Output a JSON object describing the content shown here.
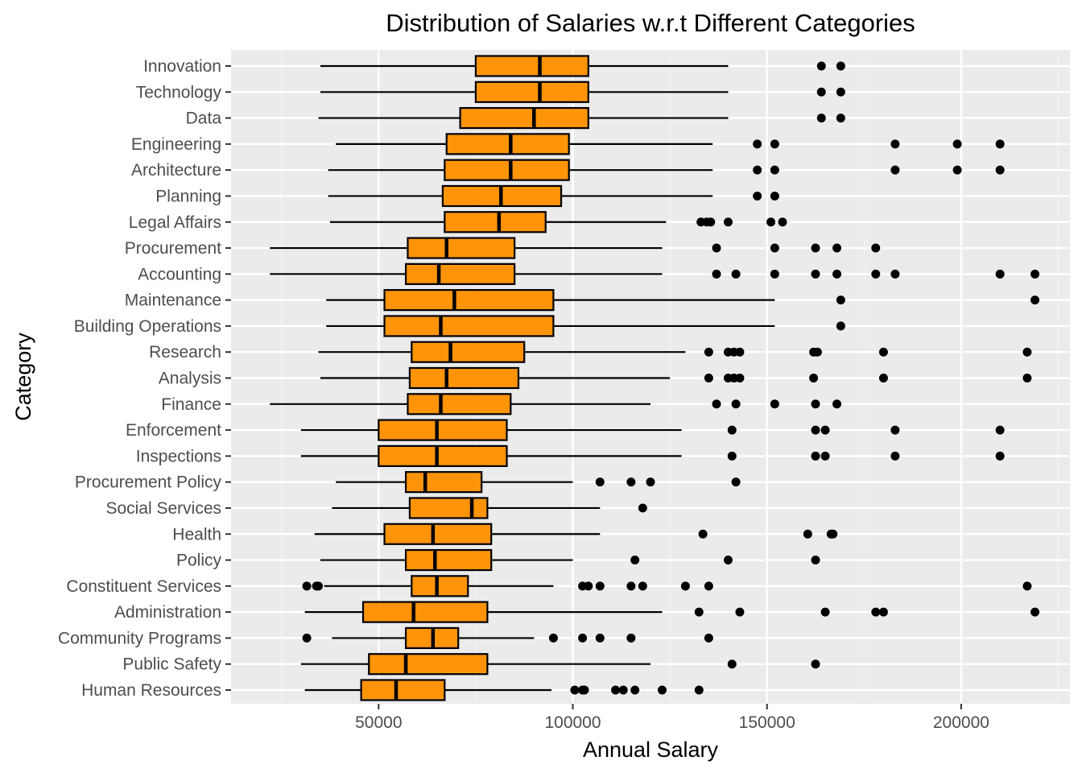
{
  "chart_data": {
    "type": "boxplot",
    "orientation": "horizontal",
    "title": "Distribution of Salaries w.r.t Different Categories",
    "xlabel": "Annual Salary",
    "ylabel": "Category",
    "xlim": [
      12000,
      228000
    ],
    "xticks": [
      50000,
      100000,
      150000,
      200000
    ],
    "xtick_labels": [
      "50000",
      "100000",
      "150000",
      "200000"
    ],
    "grid": true,
    "legend": "none",
    "colors": {
      "box_fill": "#FF9409",
      "box_stroke": "#000000",
      "panel_bg": "#EBEBEB",
      "grid_major": "#FFFFFF",
      "grid_minor": "#F5F5F5",
      "outlier": "#000000"
    },
    "categories": [
      "Innovation",
      "Technology",
      "Data",
      "Engineering",
      "Architecture",
      "Planning",
      "Legal Affairs",
      "Procurement",
      "Accounting",
      "Maintenance",
      "Building Operations",
      "Research",
      "Analysis",
      "Finance",
      "Enforcement",
      "Inspections",
      "Procurement Policy",
      "Social Services",
      "Health",
      "Policy",
      "Constituent Services",
      "Administration",
      "Community Programs",
      "Public Safety",
      "Human Resources"
    ],
    "boxes": [
      {
        "category": "Innovation",
        "whisker_low": 35000,
        "q1": 75000,
        "median": 91500,
        "q3": 104000,
        "whisker_high": 140000,
        "outliers": [
          164000,
          169000
        ]
      },
      {
        "category": "Technology",
        "whisker_low": 35000,
        "q1": 75000,
        "median": 91500,
        "q3": 104000,
        "whisker_high": 140000,
        "outliers": [
          164000,
          169000
        ]
      },
      {
        "category": "Data",
        "whisker_low": 34500,
        "q1": 71000,
        "median": 90000,
        "q3": 104000,
        "whisker_high": 140000,
        "outliers": [
          164000,
          169000
        ]
      },
      {
        "category": "Engineering",
        "whisker_low": 39000,
        "q1": 67500,
        "median": 84000,
        "q3": 99000,
        "whisker_high": 136000,
        "outliers": [
          147500,
          152000,
          183000,
          199000,
          210000
        ]
      },
      {
        "category": "Architecture",
        "whisker_low": 37000,
        "q1": 67000,
        "median": 84000,
        "q3": 99000,
        "whisker_high": 136000,
        "outliers": [
          147500,
          152000,
          183000,
          199000,
          210000
        ]
      },
      {
        "category": "Planning",
        "whisker_low": 37000,
        "q1": 66500,
        "median": 81500,
        "q3": 97000,
        "whisker_high": 136000,
        "outliers": [
          147500,
          152000
        ]
      },
      {
        "category": "Legal Affairs",
        "whisker_low": 37500,
        "q1": 67000,
        "median": 81000,
        "q3": 93000,
        "whisker_high": 124000,
        "outliers": [
          133000,
          134500,
          135500,
          140000,
          151000,
          154000
        ]
      },
      {
        "category": "Procurement",
        "whisker_low": 22000,
        "q1": 57500,
        "median": 67500,
        "q3": 85000,
        "whisker_high": 123000,
        "outliers": [
          137000,
          152000,
          162500,
          168000,
          178000
        ]
      },
      {
        "category": "Accounting",
        "whisker_low": 22000,
        "q1": 57000,
        "median": 65500,
        "q3": 85000,
        "whisker_high": 123000,
        "outliers": [
          137000,
          142000,
          152000,
          162500,
          168000,
          178000,
          183000,
          210000,
          219000
        ]
      },
      {
        "category": "Maintenance",
        "whisker_low": 36500,
        "q1": 51500,
        "median": 69500,
        "q3": 95000,
        "whisker_high": 152000,
        "outliers": [
          169000,
          219000
        ]
      },
      {
        "category": "Building Operations",
        "whisker_low": 36500,
        "q1": 51500,
        "median": 66000,
        "q3": 95000,
        "whisker_high": 152000,
        "outliers": [
          169000
        ]
      },
      {
        "category": "Research",
        "whisker_low": 34500,
        "q1": 58500,
        "median": 68500,
        "q3": 87500,
        "whisker_high": 129000,
        "outliers": [
          135000,
          140000,
          141500,
          143000,
          162000,
          163000,
          180000,
          217000
        ]
      },
      {
        "category": "Analysis",
        "whisker_low": 35000,
        "q1": 58000,
        "median": 67500,
        "q3": 86000,
        "whisker_high": 125000,
        "outliers": [
          135000,
          140000,
          141500,
          143000,
          162000,
          180000,
          217000
        ]
      },
      {
        "category": "Finance",
        "whisker_low": 22000,
        "q1": 57500,
        "median": 66000,
        "q3": 84000,
        "whisker_high": 120000,
        "outliers": [
          137000,
          142000,
          152000,
          162500,
          168000
        ]
      },
      {
        "category": "Enforcement",
        "whisker_low": 30000,
        "q1": 50000,
        "median": 65000,
        "q3": 83000,
        "whisker_high": 128000,
        "outliers": [
          141000,
          162500,
          165000,
          183000,
          210000
        ]
      },
      {
        "category": "Inspections",
        "whisker_low": 30000,
        "q1": 50000,
        "median": 65000,
        "q3": 83000,
        "whisker_high": 128000,
        "outliers": [
          141000,
          162500,
          165000,
          183000,
          210000
        ]
      },
      {
        "category": "Procurement Policy",
        "whisker_low": 39000,
        "q1": 57000,
        "median": 62000,
        "q3": 76500,
        "whisker_high": 100000,
        "outliers": [
          107000,
          115000,
          120000,
          142000
        ]
      },
      {
        "category": "Social Services",
        "whisker_low": 38000,
        "q1": 58000,
        "median": 74000,
        "q3": 78000,
        "whisker_high": 107000,
        "outliers": [
          118000
        ]
      },
      {
        "category": "Health",
        "whisker_low": 33500,
        "q1": 51500,
        "median": 64000,
        "q3": 79000,
        "whisker_high": 107000,
        "outliers": [
          133500,
          160500,
          166500,
          167000
        ]
      },
      {
        "category": "Policy",
        "whisker_low": 35000,
        "q1": 57000,
        "median": 64500,
        "q3": 79000,
        "whisker_high": 100000,
        "outliers": [
          116000,
          140000,
          162500
        ]
      },
      {
        "category": "Constituent Services",
        "whisker_low": 36000,
        "q1": 58500,
        "median": 65000,
        "q3": 73000,
        "whisker_high": 95000,
        "outliers": [
          31500,
          34000,
          34500,
          102500,
          104000,
          107000,
          115000,
          118000,
          129000,
          135000,
          217000
        ]
      },
      {
        "category": "Administration",
        "whisker_low": 31000,
        "q1": 46000,
        "median": 59000,
        "q3": 78000,
        "whisker_high": 123000,
        "outliers": [
          132500,
          143000,
          165000,
          178000,
          180000,
          219000
        ]
      },
      {
        "category": "Community Programs",
        "whisker_low": 38000,
        "q1": 57000,
        "median": 64000,
        "q3": 70500,
        "whisker_high": 90000,
        "outliers": [
          31500,
          95000,
          102500,
          107000,
          115000,
          135000
        ]
      },
      {
        "category": "Public Safety",
        "whisker_low": 30000,
        "q1": 47500,
        "median": 57000,
        "q3": 78000,
        "whisker_high": 120000,
        "outliers": [
          141000,
          162500
        ]
      },
      {
        "category": "Human Resources",
        "whisker_low": 31000,
        "q1": 45500,
        "median": 54500,
        "q3": 67000,
        "whisker_high": 94500,
        "outliers": [
          100500,
          102500,
          103000,
          111000,
          113000,
          116000,
          123000,
          132500
        ]
      }
    ]
  }
}
